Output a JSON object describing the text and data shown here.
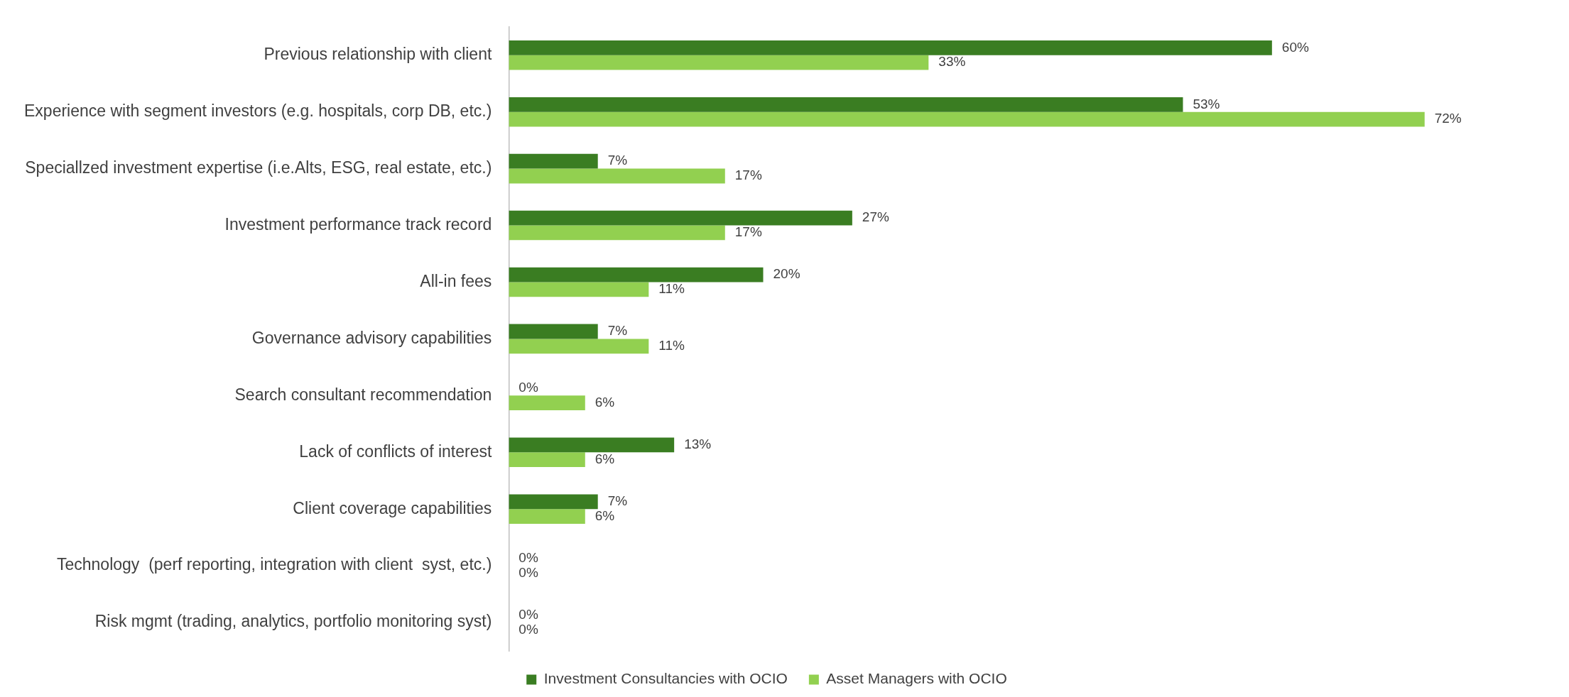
{
  "chart_data": {
    "type": "bar",
    "orientation": "horizontal",
    "categories": [
      "Previous relationship with client",
      "Experience with segment investors (e.g. hospitals, corp DB, etc.)",
      "Speciallzed investment expertise (i.e.Alts, ESG, real estate, etc.)",
      "Investment performance track record",
      "All-in fees",
      "Governance advisory capabilities",
      "Search consultant recommendation",
      "Lack of conflicts of interest",
      "Client coverage capabilities",
      "Technology  (perf reporting, integration with client  syst, etc.)",
      "Risk mgmt (trading, analytics, portfolio monitoring syst)"
    ],
    "series": [
      {
        "name": "Investment Consultancies with OCIO",
        "color": "#3a7d22",
        "values": [
          60,
          53,
          7,
          27,
          20,
          7,
          0,
          13,
          7,
          0,
          0
        ],
        "value_labels": [
          "60%",
          "53%",
          "7%",
          "27%",
          "20%",
          "7%",
          "0%",
          "13%",
          "7%",
          "0%",
          "0%"
        ]
      },
      {
        "name": "Asset Managers with OCIO",
        "color": "#92d050",
        "values": [
          33,
          72,
          17,
          17,
          11,
          11,
          6,
          6,
          6,
          0,
          0
        ],
        "value_labels": [
          "33%",
          "72%",
          "17%",
          "17%",
          "11%",
          "11%",
          "6%",
          "6%",
          "6%",
          "0%",
          "0%"
        ]
      }
    ],
    "legend": "bottom",
    "grid": false
  }
}
